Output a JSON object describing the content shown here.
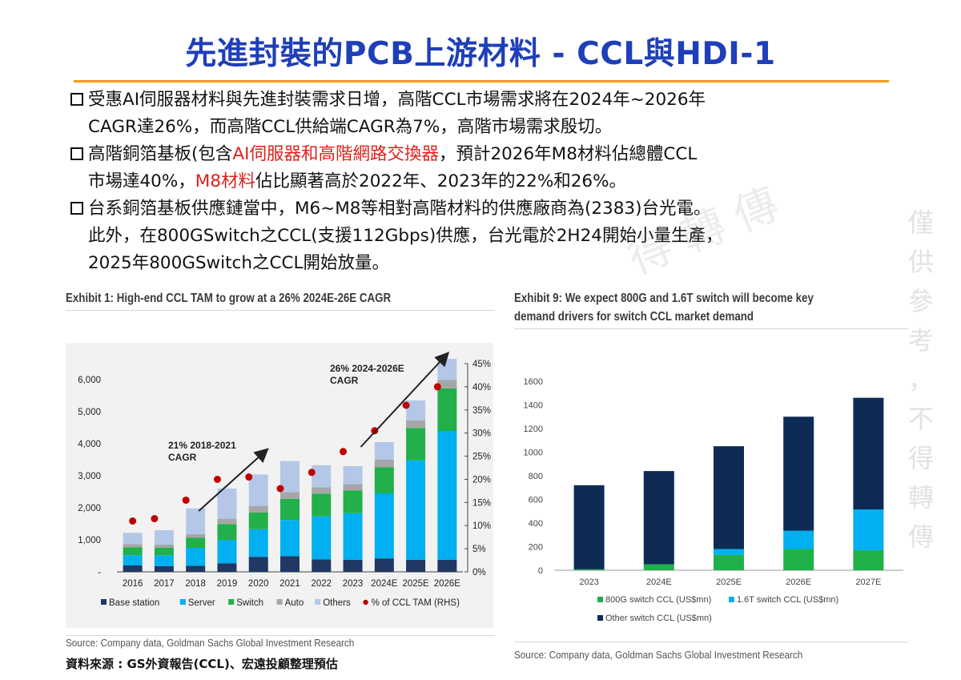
{
  "title": "先進封裝的PCB上游材料 - CCL與HDI-1",
  "bullets": [
    {
      "lines": [
        [
          {
            "text": "受惠AI伺服器材料與先進封裝需求日增，高階CCL市場需求將在2024年~2026年"
          }
        ],
        [
          {
            "text": "CAGR達26%，而高階CCL供給端CAGR為7%，高階市場需求殷切。"
          }
        ]
      ]
    },
    {
      "lines": [
        [
          {
            "text": "高階銅箔基板(包含"
          },
          {
            "text": "AI伺服器和高階網路交換器",
            "red": true
          },
          {
            "text": "，預計2026年M8材料佔總體CCL"
          }
        ],
        [
          {
            "text": "市場達40%，"
          },
          {
            "text": "M8材料",
            "red": true
          },
          {
            "text": "佔比顯著高於2022年、2023年的22%和26%。"
          }
        ]
      ]
    },
    {
      "lines": [
        [
          {
            "text": "台系銅箔基板供應鏈當中，M6~M8等相對高階材料的供應廠商為(2383)台光電。"
          }
        ],
        [
          {
            "text": "此外，在800GSwitch之CCL(支援112Gbps)供應，台光電於2H24開始小量生產，"
          }
        ],
        [
          {
            "text": "2025年800GSwitch之CCL開始放量。"
          }
        ]
      ]
    }
  ],
  "watermark": {
    "vertical": [
      "僅",
      "供",
      "參",
      "考",
      "，",
      "不",
      "得",
      "轉",
      "傳"
    ],
    "diagonal": "得 轉 傳"
  },
  "chart_data": [
    {
      "type": "bar",
      "stacked": true,
      "exhibit_title": "Exhibit 1: High-end CCL TAM to grow at a 26% 2024E-26E CAGR",
      "categories": [
        "2016",
        "2017",
        "2018",
        "2019",
        "2020",
        "2021",
        "2022",
        "2023",
        "2024E",
        "2025E",
        "2026E"
      ],
      "series": [
        {
          "name": "Base station",
          "color": "#1f3864",
          "values": [
            200,
            180,
            190,
            270,
            470,
            490,
            390,
            380,
            420,
            380,
            380
          ]
        },
        {
          "name": "Server",
          "color": "#00b0f0",
          "values": [
            320,
            340,
            560,
            720,
            860,
            1130,
            1340,
            1450,
            2030,
            3100,
            4020
          ]
        },
        {
          "name": "Switch",
          "color": "#21b04a",
          "values": [
            250,
            230,
            320,
            500,
            520,
            660,
            710,
            710,
            820,
            1010,
            1330
          ]
        },
        {
          "name": "Auto",
          "color": "#a6a6a6",
          "values": [
            100,
            100,
            110,
            170,
            210,
            210,
            200,
            200,
            230,
            240,
            260
          ]
        },
        {
          "name": "Others",
          "color": "#b4c7e7",
          "values": [
            350,
            450,
            800,
            940,
            980,
            970,
            690,
            560,
            550,
            620,
            660
          ]
        }
      ],
      "line_series": {
        "name": "% of CCL TAM (RHS)",
        "color": "#c00000",
        "axis": "right",
        "values": [
          11,
          11.5,
          15.5,
          20,
          20.5,
          18,
          21.5,
          26,
          30.5,
          36,
          40
        ]
      },
      "ylim": [
        0,
        6500
      ],
      "yticks": [
        0,
        1000,
        2000,
        3000,
        4000,
        5000,
        6000
      ],
      "yticklabels": [
        "-",
        "1,000",
        "2,000",
        "3,000",
        "4,000",
        "5,000",
        "6,000"
      ],
      "y2lim": [
        0,
        45
      ],
      "y2ticks": [
        0,
        5,
        10,
        15,
        20,
        25,
        30,
        35,
        40,
        45
      ],
      "y2ticklabels": [
        "0%",
        "5%",
        "10%",
        "15%",
        "20%",
        "25%",
        "30%",
        "35%",
        "40%",
        "45%"
      ],
      "annotations": [
        {
          "text_lines": [
            "21% 2018-2021",
            "CAGR"
          ]
        },
        {
          "text_lines": [
            "26% 2024-2026E",
            "CAGR"
          ]
        }
      ],
      "legend_position": "bottom",
      "source": "Source: Company data, Goldman Sachs Global Investment Research",
      "source_cn": "資料來源 : GS外資報告(CCL)、宏遠投顧整理預估"
    },
    {
      "type": "bar",
      "stacked": true,
      "exhibit_title_lines": [
        "Exhibit 9: We expect 800G and 1.6T switch will become key",
        "demand drivers for switch CCL market demand"
      ],
      "categories": [
        "2023",
        "2024E",
        "2025E",
        "2026E",
        "2027E"
      ],
      "series": [
        {
          "name": "800G switch CCL (US$mn)",
          "color": "#21b04a",
          "values": [
            8,
            50,
            130,
            180,
            170
          ]
        },
        {
          "name": "1.6T switch CCL (US$mn)",
          "color": "#00b0f0",
          "values": [
            0,
            0,
            50,
            155,
            345
          ]
        },
        {
          "name": "Other switch CCL (US$mn)",
          "color": "#0d2b55",
          "values": [
            712,
            790,
            870,
            965,
            945
          ]
        }
      ],
      "ylim": [
        0,
        1600
      ],
      "yticks": [
        0,
        200,
        400,
        600,
        800,
        1000,
        1200,
        1400,
        1600
      ],
      "grid": false,
      "legend_position": "bottom",
      "source": "Source: Company data, Goldman Sachs Global Investment Research"
    }
  ]
}
